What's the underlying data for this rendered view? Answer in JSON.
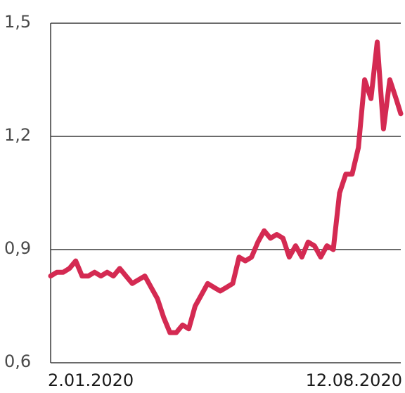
{
  "chart_data": {
    "type": "line",
    "title": "",
    "xlabel": "",
    "ylabel": "",
    "ylim": [
      0.6,
      1.5
    ],
    "y_ticks": [
      {
        "value": 1.5,
        "label": "1,5"
      },
      {
        "value": 1.2,
        "label": "1,2"
      },
      {
        "value": 0.9,
        "label": "0,9"
      },
      {
        "value": 0.6,
        "label": "0,6"
      }
    ],
    "x_labels": [
      "2.01.2020",
      "12.08.2020"
    ],
    "x_range": [
      "2020-01-02",
      "2020-08-12"
    ],
    "grid": true,
    "line_color": "#d42a52",
    "series": [
      {
        "x": [
          "2020-01-02",
          "2020-01-06",
          "2020-01-10",
          "2020-01-14",
          "2020-01-18",
          "2020-01-22",
          "2020-01-26",
          "2020-01-30",
          "2020-02-03",
          "2020-02-07",
          "2020-02-11",
          "2020-02-15",
          "2020-02-19",
          "2020-02-23",
          "2020-02-27",
          "2020-03-02",
          "2020-03-06",
          "2020-03-10",
          "2020-03-14",
          "2020-03-18",
          "2020-03-22",
          "2020-03-26",
          "2020-03-30",
          "2020-04-03",
          "2020-04-07",
          "2020-04-11",
          "2020-04-15",
          "2020-04-19",
          "2020-04-23",
          "2020-04-27",
          "2020-05-01",
          "2020-05-05",
          "2020-05-09",
          "2020-05-13",
          "2020-05-17",
          "2020-05-21",
          "2020-05-25",
          "2020-05-29",
          "2020-06-02",
          "2020-06-06",
          "2020-06-10",
          "2020-06-14",
          "2020-06-18",
          "2020-06-22",
          "2020-06-26",
          "2020-06-30",
          "2020-07-04",
          "2020-07-08",
          "2020-07-12",
          "2020-07-16",
          "2020-07-20",
          "2020-07-24",
          "2020-07-28",
          "2020-08-01",
          "2020-08-05",
          "2020-08-09",
          "2020-08-12"
        ],
        "values": [
          0.83,
          0.84,
          0.84,
          0.85,
          0.87,
          0.83,
          0.83,
          0.84,
          0.83,
          0.84,
          0.83,
          0.85,
          0.83,
          0.81,
          0.82,
          0.83,
          0.8,
          0.77,
          0.72,
          0.68,
          0.68,
          0.7,
          0.69,
          0.75,
          0.78,
          0.81,
          0.8,
          0.79,
          0.8,
          0.81,
          0.88,
          0.87,
          0.88,
          0.92,
          0.95,
          0.93,
          0.94,
          0.93,
          0.88,
          0.91,
          0.88,
          0.92,
          0.91,
          0.88,
          0.91,
          0.9,
          1.05,
          1.1,
          1.1,
          1.17,
          1.35,
          1.3,
          1.45,
          1.22,
          1.35,
          1.3,
          1.26
        ]
      }
    ]
  }
}
